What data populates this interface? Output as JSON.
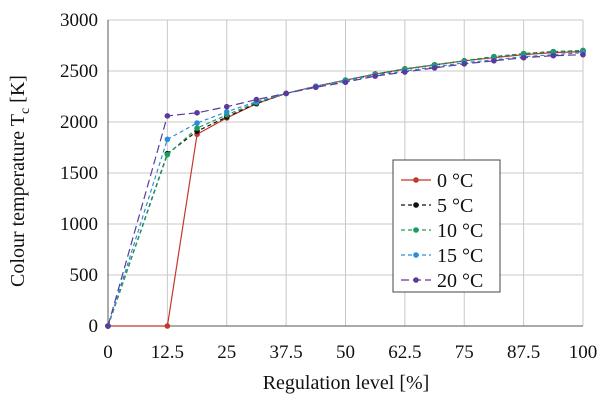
{
  "chart_data": {
    "type": "line",
    "title": "",
    "xlabel": "Regulation level [%]",
    "ylabel": "Colour temperature T",
    "ylabel_subscript": "c",
    "ylabel_unit": " [K]",
    "x_ticks": [
      "0",
      "12.5",
      "25",
      "37.5",
      "50",
      "62.5",
      "75",
      "87.5",
      "100"
    ],
    "y_ticks": [
      "0",
      "500",
      "1000",
      "1500",
      "2000",
      "2500",
      "3000"
    ],
    "xlim": [
      0,
      100
    ],
    "ylim": [
      0,
      3000
    ],
    "grid": true,
    "legend_position": "center-right",
    "x": [
      0,
      12.5,
      18.75,
      25,
      31.25,
      37.5,
      43.75,
      50,
      56.25,
      62.5,
      68.75,
      75,
      81.25,
      87.5,
      93.75,
      100
    ],
    "series": [
      {
        "name": "0 °C",
        "color": "#c0392b",
        "dash": "",
        "values": [
          0,
          0,
          1880,
          2040,
          2180,
          2280,
          2350,
          2410,
          2470,
          2520,
          2560,
          2600,
          2630,
          2660,
          2680,
          2690
        ]
      },
      {
        "name": "5 °C",
        "color": "#111111",
        "dash": "4 3",
        "values": [
          0,
          1690,
          1910,
          2050,
          2180,
          2280,
          2350,
          2410,
          2470,
          2520,
          2560,
          2600,
          2640,
          2670,
          2690,
          2700
        ]
      },
      {
        "name": "10 °C",
        "color": "#1a9e5c",
        "dash": "4 3",
        "values": [
          0,
          1680,
          1940,
          2070,
          2190,
          2280,
          2350,
          2410,
          2470,
          2520,
          2560,
          2600,
          2640,
          2670,
          2690,
          2700
        ]
      },
      {
        "name": "15 °C",
        "color": "#2b8fd6",
        "dash": "4 3",
        "values": [
          0,
          1830,
          1990,
          2100,
          2200,
          2280,
          2350,
          2400,
          2460,
          2500,
          2540,
          2580,
          2610,
          2640,
          2660,
          2680
        ]
      },
      {
        "name": "20 °C",
        "color": "#5b3a9c",
        "dash": "8 4",
        "values": [
          0,
          2060,
          2090,
          2150,
          2220,
          2280,
          2340,
          2390,
          2450,
          2490,
          2530,
          2570,
          2600,
          2630,
          2650,
          2660
        ]
      }
    ]
  }
}
